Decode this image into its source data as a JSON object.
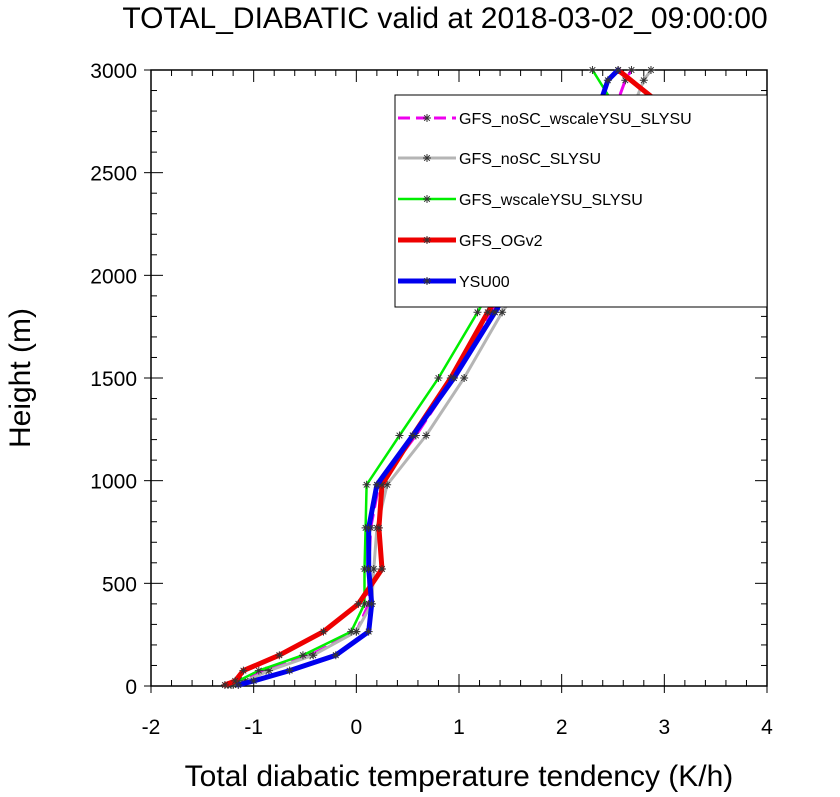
{
  "chart_data": {
    "type": "line",
    "title": "TOTAL_DIABATIC valid at 2018-03-02_09:00:00",
    "xlabel": "Total diabatic temperature tendency (K/h)",
    "ylabel": "Height (m)",
    "xlim": [
      -2,
      4
    ],
    "ylim": [
      0,
      3000
    ],
    "x_ticks": [
      -2,
      -1,
      0,
      1,
      2,
      3,
      4
    ],
    "y_ticks": [
      0,
      500,
      1000,
      1500,
      2000,
      2500,
      3000
    ],
    "x_tick_labels": [
      "-2",
      "-1",
      "0",
      "1",
      "2",
      "3",
      "4"
    ],
    "y_tick_labels": [
      "0",
      "500",
      "1000",
      "1500",
      "2000",
      "2500",
      "3000"
    ],
    "legend_position": "top-right",
    "grid": false,
    "series": [
      {
        "name": "GFS_noSC_wscaleYSU_SLYSU",
        "color": "#ee00ee",
        "dash": "dashed",
        "width": "medium",
        "points": [
          [
            -1.22,
            5
          ],
          [
            -1.12,
            25
          ],
          [
            -0.88,
            75
          ],
          [
            -0.45,
            150
          ],
          [
            0.0,
            265
          ],
          [
            0.12,
            400
          ],
          [
            0.12,
            570
          ],
          [
            0.14,
            770
          ],
          [
            0.22,
            980
          ],
          [
            0.58,
            1220
          ],
          [
            0.95,
            1500
          ],
          [
            1.32,
            1820
          ],
          [
            1.85,
            2200
          ],
          [
            2.35,
            2580
          ],
          [
            2.62,
            2950
          ],
          [
            2.68,
            3000
          ]
        ]
      },
      {
        "name": "GFS_noSC_SLYSU",
        "color": "#b5b5b5",
        "dash": "solid",
        "width": "medium",
        "points": [
          [
            -1.2,
            5
          ],
          [
            -1.08,
            25
          ],
          [
            -0.85,
            75
          ],
          [
            -0.42,
            150
          ],
          [
            0.0,
            265
          ],
          [
            0.15,
            400
          ],
          [
            0.17,
            570
          ],
          [
            0.2,
            770
          ],
          [
            0.3,
            980
          ],
          [
            0.68,
            1220
          ],
          [
            1.05,
            1500
          ],
          [
            1.42,
            1820
          ],
          [
            1.95,
            2200
          ],
          [
            2.5,
            2580
          ],
          [
            2.8,
            2950
          ],
          [
            2.87,
            3000
          ]
        ]
      },
      {
        "name": "GFS_wscaleYSU_SLYSU",
        "color": "#00ee00",
        "dash": "solid",
        "width": "thin",
        "points": [
          [
            -1.25,
            5
          ],
          [
            -1.15,
            25
          ],
          [
            -0.95,
            75
          ],
          [
            -0.52,
            150
          ],
          [
            -0.05,
            265
          ],
          [
            0.08,
            400
          ],
          [
            0.08,
            570
          ],
          [
            0.09,
            770
          ],
          [
            0.1,
            980
          ],
          [
            0.42,
            1220
          ],
          [
            0.8,
            1500
          ],
          [
            1.18,
            1820
          ],
          [
            1.62,
            2200
          ],
          [
            2.82,
            2580
          ],
          [
            2.3,
            3000
          ]
        ]
      },
      {
        "name": "GFS_OGv2",
        "color": "#ee0000",
        "dash": "solid",
        "width": "thick",
        "points": [
          [
            -1.28,
            5
          ],
          [
            -1.18,
            25
          ],
          [
            -1.1,
            75
          ],
          [
            -0.75,
            150
          ],
          [
            -0.32,
            265
          ],
          [
            0.02,
            400
          ],
          [
            0.25,
            570
          ],
          [
            0.22,
            770
          ],
          [
            0.25,
            980
          ],
          [
            0.55,
            1220
          ],
          [
            0.92,
            1500
          ],
          [
            1.28,
            1820
          ],
          [
            1.75,
            2200
          ],
          [
            3.6,
            2580
          ],
          [
            2.55,
            3000
          ]
        ]
      },
      {
        "name": "YSU00",
        "color": "#0000ee",
        "dash": "solid",
        "width": "thick",
        "points": [
          [
            -1.15,
            5
          ],
          [
            -1.0,
            25
          ],
          [
            -0.65,
            75
          ],
          [
            -0.2,
            150
          ],
          [
            0.12,
            265
          ],
          [
            0.15,
            400
          ],
          [
            0.12,
            570
          ],
          [
            0.12,
            770
          ],
          [
            0.2,
            980
          ],
          [
            0.55,
            1220
          ],
          [
            0.95,
            1500
          ],
          [
            1.35,
            1820
          ],
          [
            1.8,
            2200
          ],
          [
            2.2,
            2580
          ],
          [
            2.45,
            2950
          ],
          [
            2.55,
            3000
          ]
        ]
      }
    ]
  }
}
